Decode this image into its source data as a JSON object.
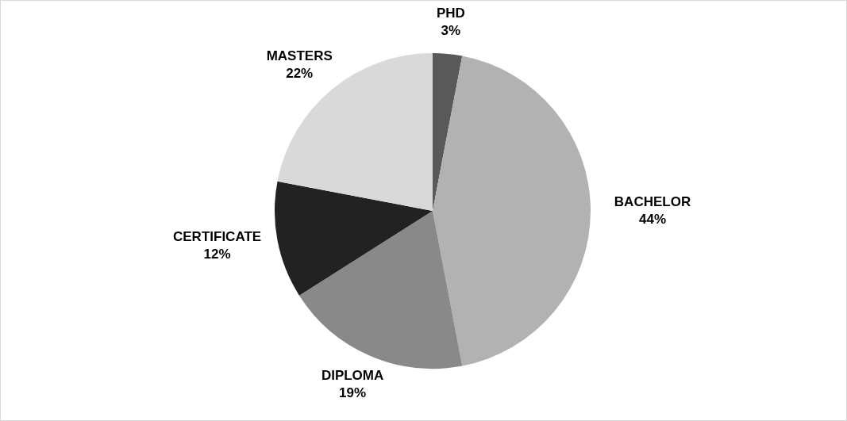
{
  "chart_data": {
    "type": "pie",
    "categories": [
      "PHD",
      "BACHELOR",
      "DIPLOMA",
      "CERTIFICATE",
      "MASTERS"
    ],
    "values": [
      3,
      44,
      19,
      12,
      22
    ],
    "colors": [
      "#595959",
      "#b2b2b2",
      "#898989",
      "#222222",
      "#d9d9d9"
    ],
    "value_labels": [
      "3%",
      "44%",
      "19%",
      "12%",
      "22%"
    ],
    "legend": false
  }
}
